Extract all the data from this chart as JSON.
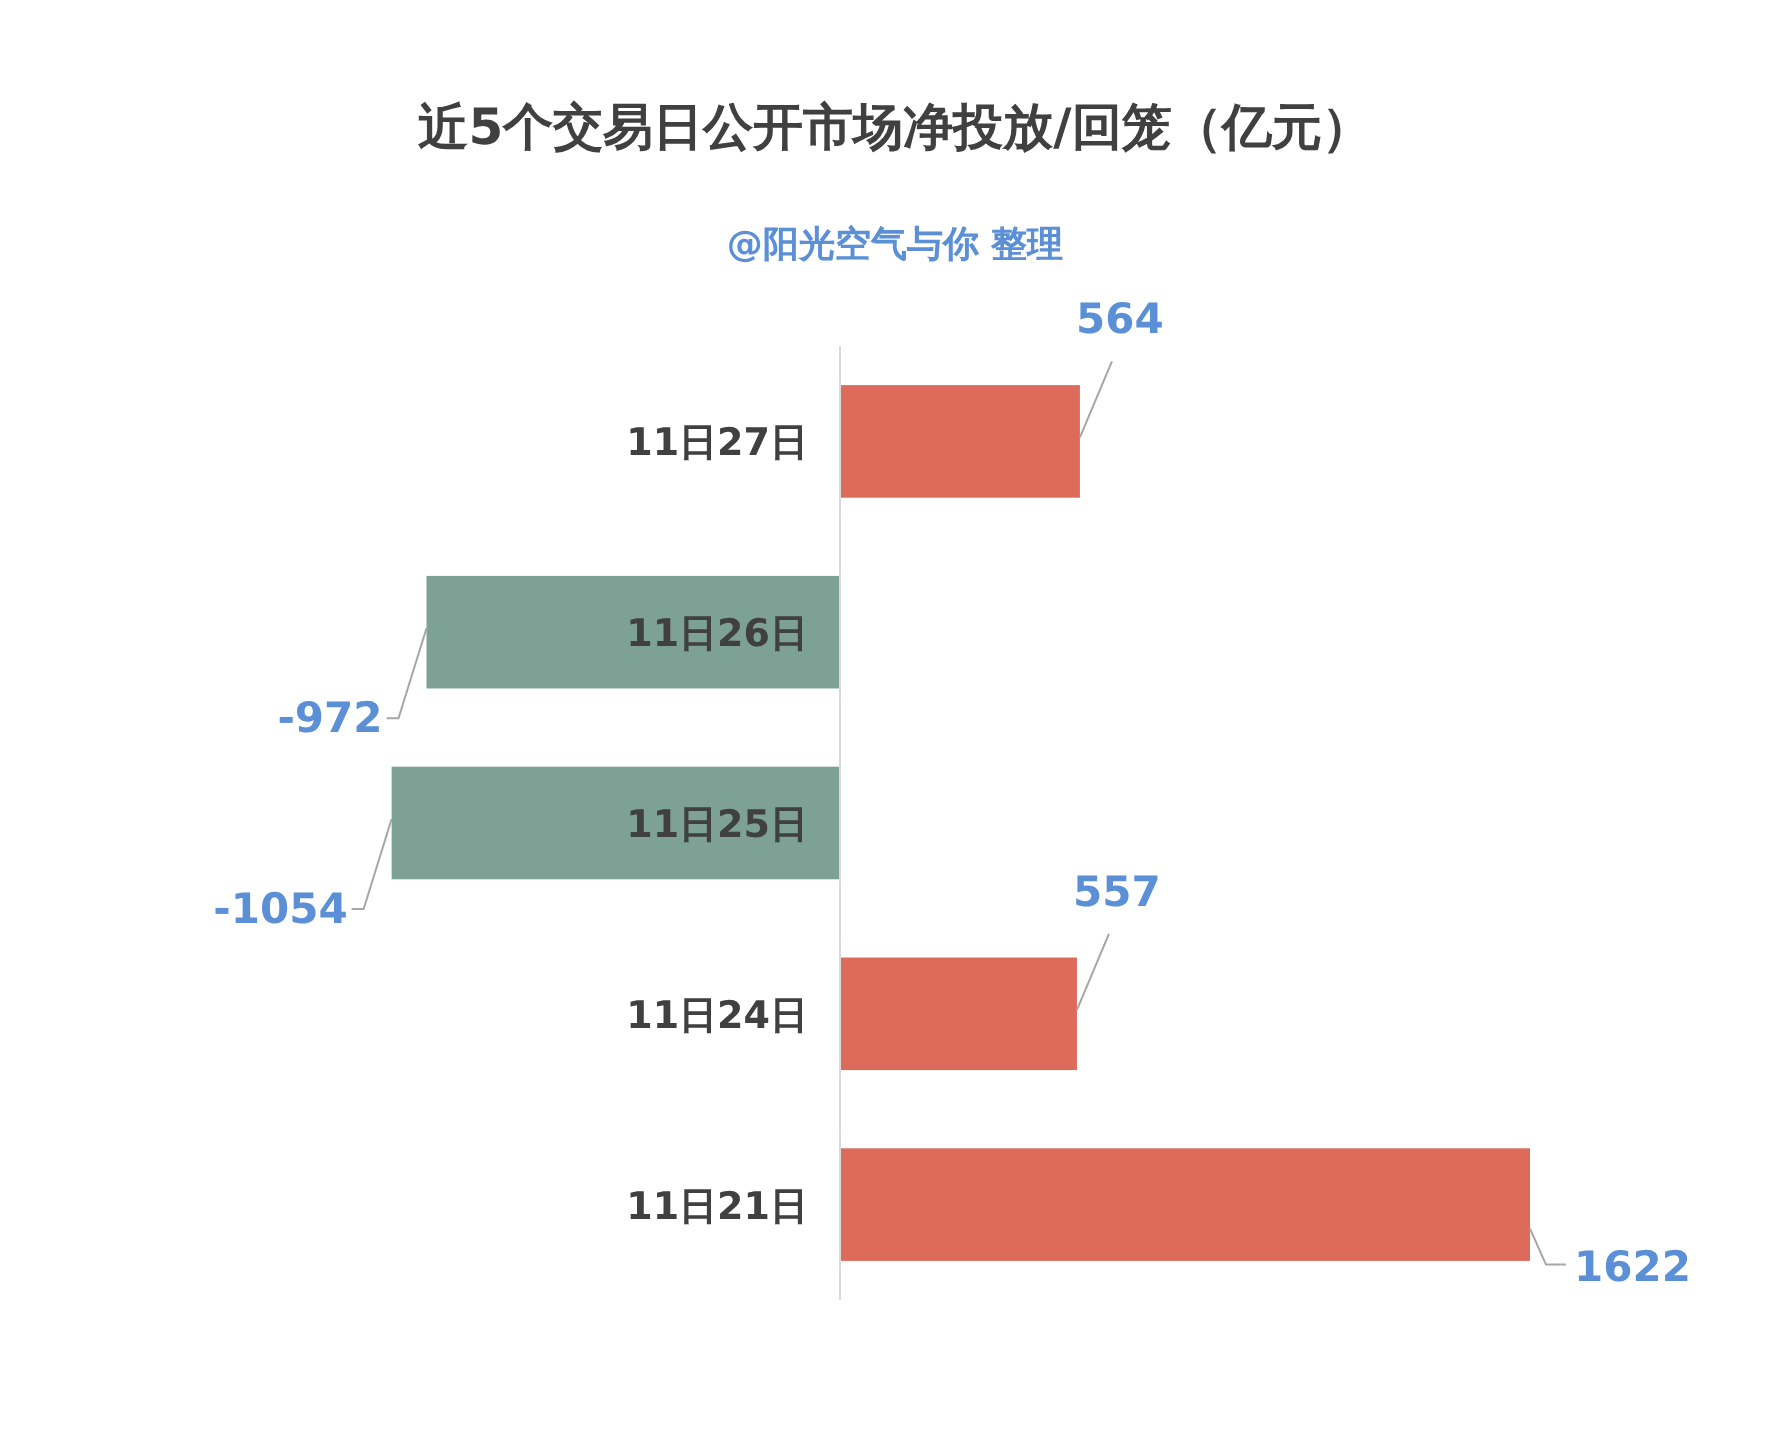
{
  "chart_data": {
    "type": "bar",
    "orientation": "horizontal",
    "title": "近5个交易日公开市场净投放/回笼（亿元）",
    "subtitle": "@阳光空气与你 整理",
    "categories": [
      "11日27日",
      "11日26日",
      "11日25日",
      "11日24日",
      "11日21日"
    ],
    "values": [
      564,
      -972,
      -1054,
      557,
      1622
    ],
    "colors": [
      "#dd6b5c",
      "#7ea195",
      "#7ea195",
      "#dd6b5c",
      "#dd6b5c"
    ],
    "data_labels": true
  }
}
